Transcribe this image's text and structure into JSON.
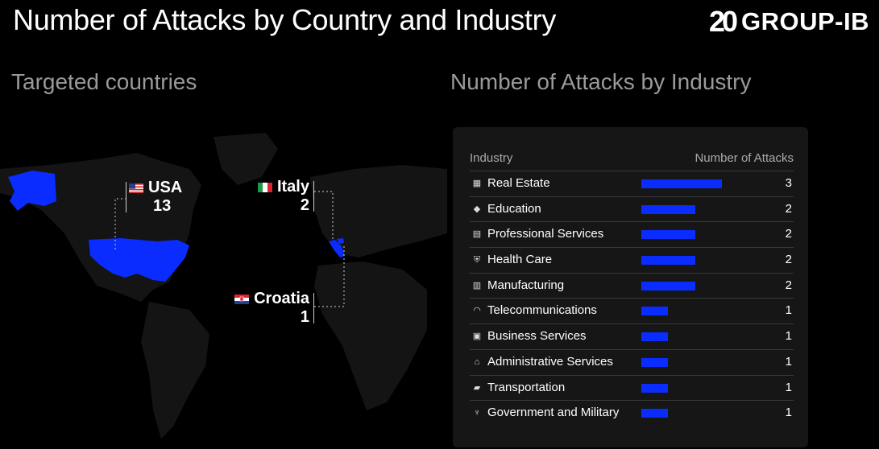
{
  "header": {
    "title": "Number of Attacks by Country and Industry",
    "logo_number": "20",
    "logo_brand": "GROUP-IB"
  },
  "map_section": {
    "subtitle": "Targeted countries",
    "countries": [
      {
        "name": "USA",
        "value": "13"
      },
      {
        "name": "Italy",
        "value": "2"
      },
      {
        "name": "Croatia",
        "value": "1"
      }
    ],
    "highlight_color": "#0a2cff"
  },
  "chart_data": {
    "type": "bar",
    "title": "Number of Attacks by Industry",
    "column_headers": [
      "Industry",
      "Number of Attacks"
    ],
    "categories": [
      "Real Estate",
      "Education",
      "Professional Services",
      "Health Care",
      "Manufacturing",
      "Telecommunications",
      "Business Services",
      "Administrative Services",
      "Transportation",
      "Government and Military"
    ],
    "icons": [
      "building-icon",
      "graduation-cap-icon",
      "id-card-icon",
      "shield-cross-icon",
      "factory-icon",
      "wifi-icon",
      "briefcase-icon",
      "institution-icon",
      "truck-icon",
      "trophy-icon"
    ],
    "values": [
      3,
      2,
      2,
      2,
      2,
      1,
      1,
      1,
      1,
      1
    ],
    "xlim": [
      0,
      3
    ],
    "bar_color": "#0a2cff"
  }
}
